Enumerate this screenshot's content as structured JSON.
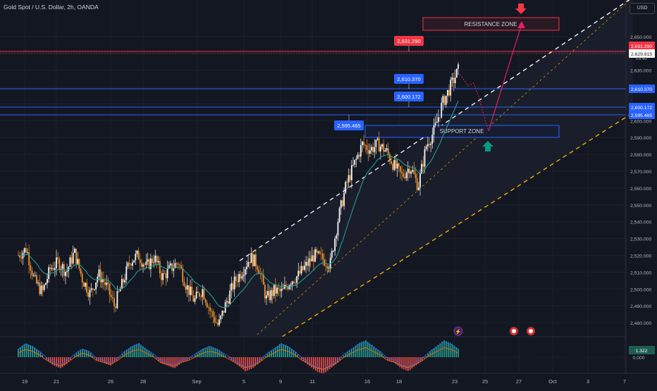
{
  "header": {
    "title": "Gold Spot / U.S. Dollar, 2h, OANDA",
    "currency": "USD",
    "countdown": "03:40"
  },
  "chart_data": {
    "type": "candlestick",
    "symbol": "Gold Spot / U.S. Dollar",
    "timeframe": "2h",
    "source": "OANDA",
    "ylim": [
      2475,
      2660
    ],
    "y_ticks": [
      2480,
      2490,
      2500,
      2510,
      2520,
      2530,
      2540,
      2550,
      2560,
      2570,
      2580,
      2590,
      2600,
      2610,
      2620,
      2630,
      2640,
      2650
    ],
    "y_tick_labels": [
      "2,480.000",
      "2,490.000",
      "2,500.000",
      "2,510.000",
      "2,520.000",
      "2,530.000",
      "2,540.000",
      "2,550.000",
      "2,560.000",
      "2,570.000",
      "2,580.000",
      "2,590.000",
      "2,600.000",
      "2,610.000",
      "2,620.000",
      "2,630.000",
      "2,640.000",
      "2,650.000"
    ],
    "x_ticks": [
      "19",
      "21",
      "26",
      "28",
      "Sep",
      "5",
      "9",
      "11",
      "16",
      "18",
      "23",
      "25",
      "27",
      "Oct",
      "3",
      "7"
    ],
    "price_path": [
      [
        0,
        2520
      ],
      [
        1,
        2524
      ],
      [
        2,
        2505
      ],
      [
        3,
        2498
      ],
      [
        4,
        2512
      ],
      [
        5,
        2516
      ],
      [
        6,
        2510
      ],
      [
        7,
        2522
      ],
      [
        8,
        2506
      ],
      [
        9,
        2497
      ],
      [
        10,
        2509
      ],
      [
        11,
        2502
      ],
      [
        12,
        2490
      ],
      [
        13,
        2503
      ],
      [
        14,
        2517
      ],
      [
        15,
        2520
      ],
      [
        16,
        2513
      ],
      [
        17,
        2519
      ],
      [
        18,
        2507
      ],
      [
        19,
        2512
      ],
      [
        20,
        2516
      ],
      [
        21,
        2502
      ],
      [
        22,
        2493
      ],
      [
        23,
        2500
      ],
      [
        24,
        2487
      ],
      [
        25,
        2478
      ],
      [
        26,
        2492
      ],
      [
        27,
        2504
      ],
      [
        28,
        2511
      ],
      [
        29,
        2519
      ],
      [
        30,
        2514
      ],
      [
        31,
        2494
      ],
      [
        32,
        2499
      ],
      [
        33,
        2498
      ],
      [
        34,
        2505
      ],
      [
        35,
        2508
      ],
      [
        36,
        2514
      ],
      [
        37,
        2520
      ],
      [
        38,
        2518
      ],
      [
        39,
        2515
      ],
      [
        40,
        2542
      ],
      [
        41,
        2562
      ],
      [
        42,
        2574
      ],
      [
        43,
        2586
      ],
      [
        44,
        2583
      ],
      [
        45,
        2586
      ],
      [
        46,
        2582
      ],
      [
        47,
        2573
      ],
      [
        48,
        2567
      ],
      [
        49,
        2573
      ],
      [
        50,
        2561
      ],
      [
        51,
        2585
      ],
      [
        52,
        2594
      ],
      [
        53,
        2610
      ],
      [
        54,
        2620
      ],
      [
        55,
        2630
      ]
    ],
    "ema_note": "",
    "lines": {
      "resistance_red": 2631.29,
      "blue_1": 2610.37,
      "blue_2": 2600.172,
      "blue_3": 2595.465
    },
    "labels": {
      "current_price": "2,629.815",
      "price_tag_red": "2,631.290",
      "blue_tag_1": "2,610.370",
      "blue_tag_2": "2,600.172",
      "blue_tag_3": "2,595.465",
      "axis_tag_red": "2,631.290",
      "axis_tag_blue_1": "2,610.370",
      "axis_tag_blue_2": "2,600.172",
      "axis_tag_blue_3": "2,595.465"
    },
    "zones": {
      "resistance": {
        "label": "RESISTANCE ZONE",
        "price_low": 2643,
        "price_high": 2650
      },
      "support": {
        "label": "SUPPORT ZONE",
        "price_low": 2583,
        "price_high": 2589
      }
    },
    "oscillator": {
      "value_label": "1.322",
      "zero_label": "0.000",
      "values": [
        3,
        5,
        4,
        2,
        -1,
        -3,
        -4,
        -2,
        1,
        3,
        2,
        -1,
        -2,
        -3,
        -1,
        2,
        4,
        5,
        3,
        1,
        -2,
        -3,
        -4,
        -2,
        -1,
        1,
        3,
        4,
        3,
        1,
        -1,
        -3,
        -5,
        -4,
        -2,
        1,
        3,
        5,
        4,
        2,
        -1,
        -3,
        -5,
        -6,
        -4,
        -2,
        1,
        3,
        5,
        6,
        4,
        2,
        -1,
        -2,
        -4,
        -5,
        -3,
        -1,
        2,
        4,
        6,
        5,
        3
      ]
    },
    "colors": {
      "background": "#131722",
      "candle_up": "#f7f7f7",
      "candle_down": "#f0932b",
      "ema": "#26a69a",
      "resistance_line": "#f23645",
      "support_lines": "#2962ff",
      "channel_white": "#ffffff",
      "channel_orange": "#ffb300",
      "projection": "#e91e63",
      "arrow_down": "#f23645",
      "arrow_up": "#089981",
      "osc_up": "#26a69a",
      "osc_down": "#ef5350"
    }
  }
}
